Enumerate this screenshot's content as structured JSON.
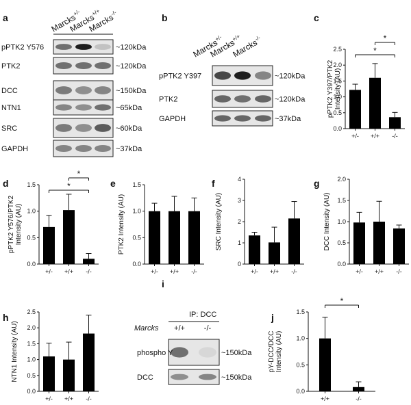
{
  "panels": {
    "a": {
      "letter": "a",
      "genotypes": [
        {
          "name": "Marcks",
          "sup": "+/-"
        },
        {
          "name": "Marcks",
          "sup": "+/+"
        },
        {
          "name": "Marcks",
          "sup": "-/-"
        }
      ],
      "rows": [
        {
          "label": "pPTK2 Y576",
          "size": "~120kDa",
          "intensity": [
            0.55,
            0.95,
            0.15
          ]
        },
        {
          "label": "PTK2",
          "size": "~120kDa",
          "intensity": [
            0.55,
            0.55,
            0.55
          ]
        },
        {
          "label": "DCC",
          "size": "~150kDa",
          "intensity": [
            0.5,
            0.4,
            0.45
          ]
        },
        {
          "label": "NTN1",
          "size": "~65kDa",
          "intensity": [
            0.45,
            0.4,
            0.55
          ]
        },
        {
          "label": "SRC",
          "size": "~60kDa",
          "intensity": [
            0.5,
            0.4,
            0.65
          ]
        },
        {
          "label": "GAPDH",
          "size": "~37kDa",
          "intensity": [
            0.45,
            0.45,
            0.45
          ]
        }
      ]
    },
    "b": {
      "letter": "b",
      "genotypes": [
        {
          "name": "Marcks",
          "sup": "+/-"
        },
        {
          "name": "Marcks",
          "sup": "+/+"
        },
        {
          "name": "Marcks",
          "sup": "-/-"
        }
      ],
      "rows": [
        {
          "label": "pPTK2 Y397",
          "size": "~120kDa",
          "intensity": [
            0.75,
            0.95,
            0.45
          ]
        },
        {
          "label": "PTK2",
          "size": "~120kDa",
          "intensity": [
            0.6,
            0.55,
            0.6
          ]
        },
        {
          "label": "GAPDH",
          "size": "~37kDa",
          "intensity": [
            0.6,
            0.6,
            0.6
          ]
        }
      ]
    },
    "i": {
      "letter": "i",
      "ip_label": "IP: DCC",
      "genotype_label": "Marcks",
      "lanes": [
        "+/+",
        "-/-"
      ],
      "rows": [
        {
          "label": "phospho Y",
          "size": "~150kDa",
          "intensity": [
            0.55,
            0.05
          ]
        },
        {
          "label": "DCC",
          "size": "~150kDa",
          "intensity": [
            0.4,
            0.45
          ]
        }
      ]
    }
  },
  "chart_data": [
    {
      "panel": "c",
      "type": "bar",
      "categories": [
        "+/-",
        "+/+",
        "-/-"
      ],
      "values": [
        1.22,
        1.6,
        0.36
      ],
      "errors": [
        0.18,
        0.45,
        0.15
      ],
      "ylabel": "pPTK2 Y397/PTK2 Intensity (AU)",
      "ylim": [
        0,
        2.5
      ],
      "yticks": [
        "0.0",
        "0.5",
        "1.0",
        "1.5",
        "2.0",
        "2.5"
      ],
      "significance": [
        {
          "from": 1,
          "to": 2,
          "label": "*"
        },
        {
          "from": 0,
          "to": 2,
          "label": "*"
        }
      ]
    },
    {
      "panel": "d",
      "type": "bar",
      "categories": [
        "+/-",
        "+/+",
        "-/-"
      ],
      "values": [
        0.7,
        1.02,
        0.1
      ],
      "errors": [
        0.22,
        0.3,
        0.1
      ],
      "ylabel": "pPTK2 Y576/PTK2 Intensity (AU)",
      "ylim": [
        0,
        1.5
      ],
      "yticks": [
        "0.0",
        "0.5",
        "1.0",
        "1.5"
      ],
      "significance": [
        {
          "from": 1,
          "to": 2,
          "label": "*"
        },
        {
          "from": 0,
          "to": 2,
          "label": "*"
        }
      ]
    },
    {
      "panel": "e",
      "type": "bar",
      "categories": [
        "+/-",
        "+/+",
        "-/-"
      ],
      "values": [
        1.0,
        1.0,
        1.0
      ],
      "errors": [
        0.15,
        0.28,
        0.25
      ],
      "ylabel": "PTK2 Intensity (AU)",
      "ylim": [
        0,
        1.5
      ],
      "yticks": [
        "0.0",
        "0.5",
        "1.0",
        "1.5"
      ],
      "significance": []
    },
    {
      "panel": "f",
      "type": "bar",
      "categories": [
        "+/-",
        "+/+",
        "-/-"
      ],
      "values": [
        1.35,
        1.02,
        2.15
      ],
      "errors": [
        0.15,
        0.72,
        0.8
      ],
      "ylabel": "SRC Intensity (AU)",
      "ylim": [
        0,
        4
      ],
      "yticks": [
        "0",
        "1",
        "2",
        "3",
        "4"
      ],
      "significance": []
    },
    {
      "panel": "g",
      "type": "bar",
      "categories": [
        "+/-",
        "+/+",
        "-/-"
      ],
      "values": [
        0.98,
        1.0,
        0.84
      ],
      "errors": [
        0.24,
        0.48,
        0.08
      ],
      "ylabel": "DCC Intensity (AU)",
      "ylim": [
        0,
        2.0
      ],
      "yticks": [
        "0.0",
        "0.5",
        "1.0",
        "1.5",
        "2.0"
      ],
      "significance": []
    },
    {
      "panel": "h",
      "type": "bar",
      "categories": [
        "+/-",
        "+/+",
        "-/-"
      ],
      "values": [
        1.1,
        1.0,
        1.82
      ],
      "errors": [
        0.42,
        0.55,
        0.58
      ],
      "ylabel": "NTN1 Intensity (AU)",
      "ylim": [
        0,
        2.5
      ],
      "yticks": [
        "0.0",
        "0.5",
        "1.0",
        "1.5",
        "2.0",
        "2.5"
      ],
      "significance": []
    },
    {
      "panel": "j",
      "type": "bar",
      "categories": [
        "+/+",
        "-/-"
      ],
      "values": [
        1.0,
        0.08
      ],
      "errors": [
        0.4,
        0.1
      ],
      "ylabel": "pY-DCC/DCC Intensity (AU)",
      "ylim": [
        0,
        1.5
      ],
      "yticks": [
        "0.0",
        "0.5",
        "1.0",
        "1.5"
      ],
      "significance": [
        {
          "from": 0,
          "to": 1,
          "label": "*"
        }
      ]
    }
  ]
}
